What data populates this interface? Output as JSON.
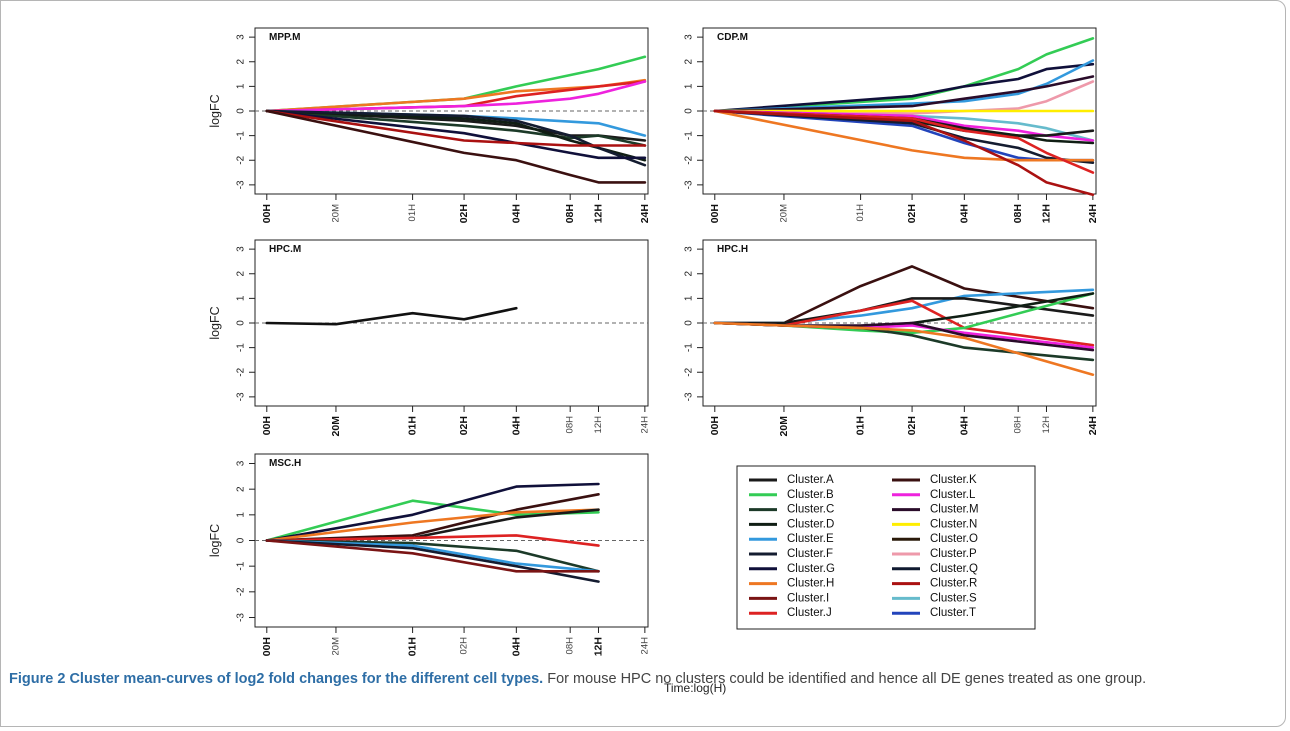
{
  "caption": {
    "label": "Figure 2",
    "title": "Cluster mean-curves of log2 fold changes for the different cell types.",
    "text": "For mouse HPC no clusters could be identified and hence all DE genes treated as one group."
  },
  "x_axis_note": "Time:log(H)",
  "legend": {
    "entries": [
      {
        "name": "Cluster.A",
        "color": "#1a1a1a"
      },
      {
        "name": "Cluster.B",
        "color": "#33cc55"
      },
      {
        "name": "Cluster.C",
        "color": "#1c3a28"
      },
      {
        "name": "Cluster.D",
        "color": "#101e14"
      },
      {
        "name": "Cluster.E",
        "color": "#3399dd"
      },
      {
        "name": "Cluster.F",
        "color": "#141c30"
      },
      {
        "name": "Cluster.G",
        "color": "#10103a"
      },
      {
        "name": "Cluster.H",
        "color": "#ee7722"
      },
      {
        "name": "Cluster.I",
        "color": "#7a1414"
      },
      {
        "name": "Cluster.J",
        "color": "#dd2222"
      },
      {
        "name": "Cluster.K",
        "color": "#3a1010"
      },
      {
        "name": "Cluster.L",
        "color": "#ee22dd"
      },
      {
        "name": "Cluster.M",
        "color": "#2a0c2a"
      },
      {
        "name": "Cluster.N",
        "color": "#ffee00"
      },
      {
        "name": "Cluster.O",
        "color": "#2a1a0a"
      },
      {
        "name": "Cluster.P",
        "color": "#ee99aa"
      },
      {
        "name": "Cluster.Q",
        "color": "#101a30"
      },
      {
        "name": "Cluster.R",
        "color": "#aa1111"
      },
      {
        "name": "Cluster.S",
        "color": "#66bbcc"
      },
      {
        "name": "Cluster.T",
        "color": "#2244bb"
      }
    ]
  },
  "chart_data": [
    {
      "type": "line",
      "title": "MPP.M",
      "ylabel": "logFC",
      "ylim": [
        -3,
        3
      ],
      "x": [
        "00H",
        "20M",
        "01H",
        "02H",
        "04H",
        "08H",
        "12H",
        "24H"
      ],
      "bold_ticks": [
        "00H",
        "02H",
        "04H",
        "08H",
        "12H",
        "24H"
      ],
      "series": [
        {
          "name": "Cluster.B",
          "color": "#33cc55",
          "values": [
            0,
            null,
            null,
            0.5,
            1.0,
            null,
            1.7,
            2.2
          ]
        },
        {
          "name": "Cluster.H",
          "color": "#ee7722",
          "values": [
            0,
            null,
            null,
            0.5,
            0.8,
            null,
            1.0,
            1.25
          ]
        },
        {
          "name": "Cluster.J",
          "color": "#dd2222",
          "values": [
            0,
            null,
            null,
            0.2,
            0.6,
            null,
            1.0,
            1.2
          ]
        },
        {
          "name": "Cluster.L",
          "color": "#ee22dd",
          "values": [
            0,
            null,
            null,
            0.2,
            0.3,
            0.5,
            0.7,
            1.2
          ]
        },
        {
          "name": "Cluster.E",
          "color": "#3399dd",
          "values": [
            0,
            null,
            null,
            -0.2,
            -0.3,
            null,
            -0.5,
            -1.0
          ]
        },
        {
          "name": "Cluster.A",
          "color": "#1a1a1a",
          "values": [
            0,
            null,
            null,
            -0.4,
            -0.6,
            -1.0,
            -1.0,
            -1.2
          ]
        },
        {
          "name": "Cluster.C",
          "color": "#1c3a28",
          "values": [
            0,
            null,
            null,
            -0.6,
            -0.8,
            -1.1,
            -1.0,
            -1.4
          ]
        },
        {
          "name": "Cluster.D",
          "color": "#101e14",
          "values": [
            0,
            null,
            null,
            -0.3,
            -0.5,
            -1.2,
            -1.5,
            -2.0
          ]
        },
        {
          "name": "Cluster.F",
          "color": "#141c30",
          "values": [
            0,
            null,
            null,
            -0.2,
            -0.4,
            -1.0,
            -1.5,
            -2.2
          ]
        },
        {
          "name": "Cluster.G",
          "color": "#10103a",
          "values": [
            0,
            null,
            null,
            -0.9,
            -1.3,
            -1.7,
            -1.9,
            -1.9
          ]
        },
        {
          "name": "Cluster.R",
          "color": "#aa1111",
          "values": [
            0,
            null,
            null,
            -1.2,
            -1.3,
            -1.4,
            -1.4,
            -1.4
          ]
        },
        {
          "name": "Cluster.K",
          "color": "#3a1010",
          "values": [
            0,
            null,
            null,
            -1.7,
            -2.0,
            -2.6,
            -2.9,
            -2.9
          ]
        }
      ]
    },
    {
      "type": "line",
      "title": "CDP.M",
      "ylabel": "",
      "ylim": [
        -3,
        3
      ],
      "x": [
        "00H",
        "20M",
        "01H",
        "02H",
        "04H",
        "08H",
        "12H",
        "24H"
      ],
      "bold_ticks": [
        "00H",
        "02H",
        "04H",
        "08H",
        "12H",
        "24H"
      ],
      "series": [
        {
          "name": "Cluster.B",
          "color": "#33cc55",
          "values": [
            0,
            null,
            null,
            0.5,
            1.0,
            1.7,
            2.3,
            2.95
          ]
        },
        {
          "name": "Cluster.G",
          "color": "#10103a",
          "values": [
            0,
            null,
            null,
            0.6,
            1.0,
            1.3,
            1.7,
            1.9
          ]
        },
        {
          "name": "Cluster.E",
          "color": "#3399dd",
          "values": [
            0,
            null,
            null,
            0.3,
            0.4,
            0.7,
            1.1,
            2.05
          ]
        },
        {
          "name": "Cluster.M",
          "color": "#2a0c2a",
          "values": [
            0,
            null,
            null,
            0.2,
            0.5,
            0.8,
            1.0,
            1.4
          ]
        },
        {
          "name": "Cluster.P",
          "color": "#ee99aa",
          "values": [
            0,
            null,
            null,
            -0.1,
            0.0,
            0.1,
            0.4,
            1.2
          ]
        },
        {
          "name": "Cluster.N",
          "color": "#ffee00",
          "values": [
            0,
            null,
            null,
            0,
            0,
            0,
            0,
            0
          ]
        },
        {
          "name": "Cluster.S",
          "color": "#66bbcc",
          "values": [
            0,
            null,
            null,
            -0.2,
            -0.3,
            -0.5,
            -0.7,
            -1.2
          ]
        },
        {
          "name": "Cluster.L",
          "color": "#ee22dd",
          "values": [
            0,
            null,
            null,
            -0.2,
            -0.6,
            -0.8,
            -1.0,
            -1.2
          ]
        },
        {
          "name": "Cluster.A",
          "color": "#1a1a1a",
          "values": [
            0,
            null,
            null,
            -0.3,
            -0.7,
            -1.0,
            -1.0,
            -0.8
          ]
        },
        {
          "name": "Cluster.D",
          "color": "#101e14",
          "values": [
            0,
            null,
            null,
            -0.4,
            -0.8,
            -1.0,
            -1.2,
            -1.3
          ]
        },
        {
          "name": "Cluster.T",
          "color": "#2244bb",
          "values": [
            0,
            null,
            null,
            -0.6,
            -1.3,
            -1.9,
            -2.0,
            -2.0
          ]
        },
        {
          "name": "Cluster.F",
          "color": "#141c30",
          "values": [
            0,
            null,
            null,
            -0.5,
            -1.1,
            -1.5,
            -1.9,
            -2.1
          ]
        },
        {
          "name": "Cluster.H",
          "color": "#ee7722",
          "values": [
            0,
            null,
            null,
            -1.6,
            -1.9,
            -2.0,
            -2.0,
            -2.0
          ]
        },
        {
          "name": "Cluster.J",
          "color": "#dd2222",
          "values": [
            0,
            null,
            null,
            -0.3,
            -0.8,
            -1.1,
            -1.7,
            -2.5
          ]
        },
        {
          "name": "Cluster.R",
          "color": "#aa1111",
          "values": [
            0,
            null,
            null,
            -0.4,
            -1.2,
            -2.2,
            -2.9,
            -3.4
          ]
        }
      ]
    },
    {
      "type": "line",
      "title": "HPC.M",
      "ylabel": "logFC",
      "ylim": [
        -3,
        3
      ],
      "x": [
        "00H",
        "20M",
        "01H",
        "02H",
        "04H",
        "08H",
        "12H",
        "24H"
      ],
      "bold_ticks": [
        "00H",
        "20M",
        "01H",
        "02H",
        "04H"
      ],
      "series": [
        {
          "name": "",
          "color": "#111111",
          "values": [
            0,
            -0.05,
            0.4,
            0.15,
            0.6,
            null,
            null,
            null
          ]
        }
      ]
    },
    {
      "type": "line",
      "title": "HPC.H",
      "ylabel": "",
      "ylim": [
        -3,
        3
      ],
      "x": [
        "00H",
        "20M",
        "01H",
        "02H",
        "04H",
        "08H",
        "12H",
        "24H"
      ],
      "bold_ticks": [
        "00H",
        "20M",
        "01H",
        "02H",
        "04H",
        "24H"
      ],
      "series": [
        {
          "name": "Cluster.K",
          "color": "#3a1010",
          "values": [
            0,
            0,
            1.5,
            2.3,
            1.4,
            null,
            null,
            0.6
          ]
        },
        {
          "name": "Cluster.E",
          "color": "#3399dd",
          "values": [
            0,
            0,
            0.3,
            0.6,
            1.1,
            null,
            null,
            1.35
          ]
        },
        {
          "name": "Cluster.A",
          "color": "#1a1a1a",
          "values": [
            0,
            0,
            0.5,
            1.0,
            1.0,
            null,
            null,
            0.3
          ]
        },
        {
          "name": "Cluster.J",
          "color": "#dd2222",
          "values": [
            0,
            -0.1,
            0.5,
            0.9,
            -0.2,
            null,
            null,
            -0.9
          ]
        },
        {
          "name": "Cluster.B",
          "color": "#33cc55",
          "values": [
            0,
            -0.1,
            -0.3,
            -0.4,
            -0.2,
            null,
            null,
            1.2
          ]
        },
        {
          "name": "Cluster.D",
          "color": "#101e14",
          "values": [
            0,
            -0.1,
            -0.2,
            0.0,
            0.3,
            null,
            null,
            1.2
          ]
        },
        {
          "name": "Cluster.L",
          "color": "#ee22dd",
          "values": [
            0,
            -0.1,
            -0.2,
            -0.1,
            -0.4,
            null,
            null,
            -1.0
          ]
        },
        {
          "name": "Cluster.M",
          "color": "#2a0c2a",
          "values": [
            0,
            -0.1,
            -0.1,
            0.0,
            -0.5,
            null,
            null,
            -1.1
          ]
        },
        {
          "name": "Cluster.C",
          "color": "#1c3a28",
          "values": [
            0,
            -0.1,
            -0.2,
            -0.5,
            -1.0,
            null,
            null,
            -1.5
          ]
        },
        {
          "name": "Cluster.H",
          "color": "#ee7722",
          "values": [
            0,
            -0.1,
            -0.2,
            -0.3,
            -0.6,
            null,
            null,
            -2.1
          ]
        }
      ]
    },
    {
      "type": "line",
      "title": "MSC.H",
      "ylabel": "logFC",
      "ylim": [
        -3,
        3
      ],
      "x": [
        "00H",
        "20M",
        "01H",
        "02H",
        "04H",
        "08H",
        "12H",
        "24H"
      ],
      "bold_ticks": [
        "00H",
        "01H",
        "04H",
        "12H"
      ],
      "series": [
        {
          "name": "Cluster.B",
          "color": "#33cc55",
          "values": [
            0,
            null,
            1.55,
            null,
            1.0,
            null,
            1.1,
            null
          ]
        },
        {
          "name": "Cluster.G",
          "color": "#10103a",
          "values": [
            0,
            null,
            1.0,
            null,
            2.1,
            null,
            2.2,
            null
          ]
        },
        {
          "name": "Cluster.K",
          "color": "#3a1010",
          "values": [
            0,
            null,
            0.2,
            null,
            1.2,
            null,
            1.8,
            null
          ]
        },
        {
          "name": "Cluster.H",
          "color": "#ee7722",
          "values": [
            0,
            null,
            0.7,
            null,
            1.1,
            null,
            1.2,
            null
          ]
        },
        {
          "name": "Cluster.A",
          "color": "#1a1a1a",
          "values": [
            0,
            null,
            0.1,
            null,
            0.9,
            null,
            1.2,
            null
          ]
        },
        {
          "name": "Cluster.J",
          "color": "#dd2222",
          "values": [
            0,
            null,
            0.1,
            null,
            0.2,
            null,
            -0.2,
            null
          ]
        },
        {
          "name": "Cluster.C",
          "color": "#1c3a28",
          "values": [
            0,
            null,
            -0.1,
            null,
            -0.4,
            null,
            -1.2,
            null
          ]
        },
        {
          "name": "Cluster.E",
          "color": "#3399dd",
          "values": [
            0,
            null,
            -0.2,
            null,
            -0.9,
            null,
            -1.2,
            null
          ]
        },
        {
          "name": "Cluster.F",
          "color": "#141c30",
          "values": [
            0,
            null,
            -0.3,
            null,
            -1.0,
            null,
            -1.6,
            null
          ]
        },
        {
          "name": "Cluster.I",
          "color": "#7a1414",
          "values": [
            0,
            null,
            -0.5,
            null,
            -1.2,
            null,
            -1.2,
            null
          ]
        }
      ]
    }
  ]
}
